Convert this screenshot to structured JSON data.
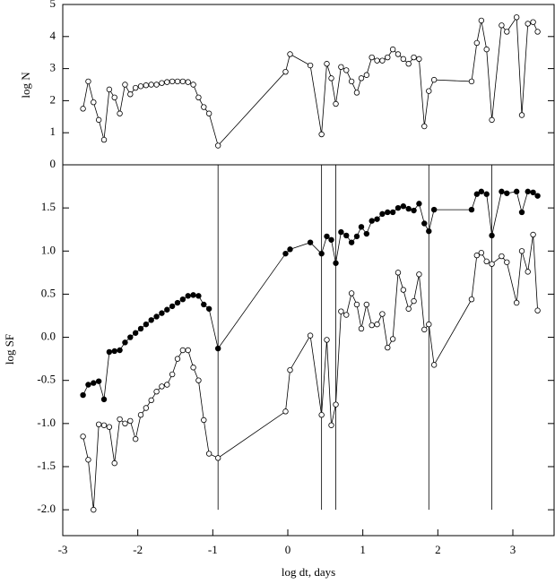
{
  "chart_data": [
    {
      "type": "line",
      "ylabel": "log N",
      "xlim": [
        -3,
        3.55
      ],
      "ylim": [
        0,
        5
      ],
      "yticks": [
        0,
        1,
        2,
        3,
        4,
        5
      ],
      "x": [
        -2.73,
        -2.66,
        -2.59,
        -2.52,
        -2.45,
        -2.38,
        -2.31,
        -2.24,
        -2.17,
        -2.1,
        -2.03,
        -1.96,
        -1.89,
        -1.82,
        -1.75,
        -1.68,
        -1.61,
        -1.54,
        -1.47,
        -1.4,
        -1.33,
        -1.26,
        -1.19,
        -1.12,
        -1.05,
        -0.93,
        -0.03,
        0.03,
        0.3,
        0.45,
        0.52,
        0.58,
        0.64,
        0.71,
        0.78,
        0.85,
        0.92,
        0.98,
        1.05,
        1.12,
        1.19,
        1.26,
        1.33,
        1.4,
        1.47,
        1.54,
        1.61,
        1.68,
        1.75,
        1.82,
        1.88,
        1.95,
        2.45,
        2.52,
        2.58,
        2.65,
        2.72,
        2.85,
        2.92,
        3.05,
        3.12,
        3.2,
        3.27,
        3.33
      ],
      "series": [
        {
          "color": "#000000",
          "marker": "open",
          "values": [
            1.75,
            2.6,
            1.95,
            1.4,
            0.78,
            2.35,
            2.1,
            1.6,
            2.5,
            2.2,
            2.4,
            2.45,
            2.48,
            2.5,
            2.5,
            2.55,
            2.58,
            2.6,
            2.6,
            2.6,
            2.58,
            2.5,
            2.1,
            1.8,
            1.6,
            0.6,
            2.9,
            3.45,
            3.1,
            0.95,
            3.15,
            2.7,
            1.9,
            3.05,
            2.95,
            2.6,
            2.25,
            2.7,
            2.8,
            3.35,
            3.25,
            3.25,
            3.35,
            3.6,
            3.45,
            3.3,
            3.15,
            3.35,
            3.3,
            1.2,
            2.3,
            2.65,
            2.6,
            3.8,
            4.5,
            3.6,
            1.4,
            4.35,
            4.15,
            4.6,
            1.55,
            4.4,
            4.45,
            4.15
          ]
        }
      ]
    },
    {
      "type": "line",
      "xlabel": "log dt, days",
      "ylabel": "log SF",
      "xlim": [
        -3,
        3.55
      ],
      "xticks": [
        -3,
        -2,
        -1,
        0,
        1,
        2,
        3
      ],
      "ylim": [
        -2.3,
        2.0
      ],
      "yticks": [
        {
          "value": -2,
          "label": "-2.0"
        },
        -1.5,
        {
          "value": -1,
          "label": "-1.0"
        },
        -0.5,
        {
          "value": 0,
          "label": "0.0"
        },
        0.5,
        {
          "value": 1,
          "label": "1.0"
        },
        1.5
      ],
      "vlines": [
        -0.93,
        0.45,
        0.64,
        1.88,
        2.72
      ],
      "vline_bottom": -2,
      "x": [
        -2.73,
        -2.66,
        -2.59,
        -2.52,
        -2.45,
        -2.38,
        -2.31,
        -2.24,
        -2.17,
        -2.1,
        -2.03,
        -1.96,
        -1.89,
        -1.82,
        -1.75,
        -1.68,
        -1.61,
        -1.54,
        -1.47,
        -1.4,
        -1.33,
        -1.26,
        -1.19,
        -1.12,
        -1.05,
        -0.93,
        -0.03,
        0.03,
        0.3,
        0.45,
        0.52,
        0.58,
        0.64,
        0.71,
        0.78,
        0.85,
        0.92,
        0.98,
        1.05,
        1.12,
        1.19,
        1.26,
        1.33,
        1.4,
        1.47,
        1.54,
        1.61,
        1.68,
        1.75,
        1.82,
        1.88,
        1.95,
        2.45,
        2.52,
        2.58,
        2.65,
        2.72,
        2.85,
        2.92,
        3.05,
        3.12,
        3.2,
        3.27,
        3.33
      ],
      "series": [
        {
          "color": "#000000",
          "marker": "filled",
          "values": [
            -0.67,
            -0.55,
            -0.53,
            -0.51,
            -0.72,
            -0.17,
            -0.16,
            -0.15,
            -0.06,
            0.0,
            0.05,
            0.1,
            0.15,
            0.2,
            0.24,
            0.28,
            0.32,
            0.36,
            0.4,
            0.44,
            0.48,
            0.49,
            0.48,
            0.38,
            0.33,
            -0.13,
            0.97,
            1.02,
            1.1,
            0.97,
            1.17,
            1.13,
            0.86,
            1.22,
            1.18,
            1.1,
            1.17,
            1.28,
            1.2,
            1.35,
            1.37,
            1.43,
            1.45,
            1.45,
            1.5,
            1.52,
            1.49,
            1.47,
            1.55,
            1.32,
            1.23,
            1.48,
            1.48,
            1.66,
            1.69,
            1.66,
            1.18,
            1.69,
            1.67,
            1.69,
            1.45,
            1.69,
            1.68,
            1.64
          ]
        },
        {
          "color": "#000000",
          "marker": "open",
          "values": [
            -1.15,
            -1.42,
            -2.0,
            -1.01,
            -1.02,
            -1.04,
            -1.46,
            -0.95,
            -1.0,
            -0.97,
            -1.18,
            -0.9,
            -0.82,
            -0.73,
            -0.63,
            -0.57,
            -0.55,
            -0.43,
            -0.25,
            -0.15,
            -0.15,
            -0.35,
            -0.5,
            -0.96,
            -1.35,
            -1.4,
            -0.86,
            -0.38,
            0.02,
            -0.9,
            -0.03,
            -1.02,
            -0.78,
            0.3,
            0.26,
            0.51,
            0.38,
            0.1,
            0.38,
            0.14,
            0.15,
            0.27,
            -0.12,
            -0.02,
            0.75,
            0.55,
            0.33,
            0.42,
            0.73,
            0.09,
            0.15,
            -0.32,
            0.44,
            0.95,
            0.98,
            0.88,
            0.85,
            0.94,
            0.87,
            0.4,
            1.0,
            0.76,
            1.19,
            0.31
          ]
        }
      ]
    }
  ]
}
